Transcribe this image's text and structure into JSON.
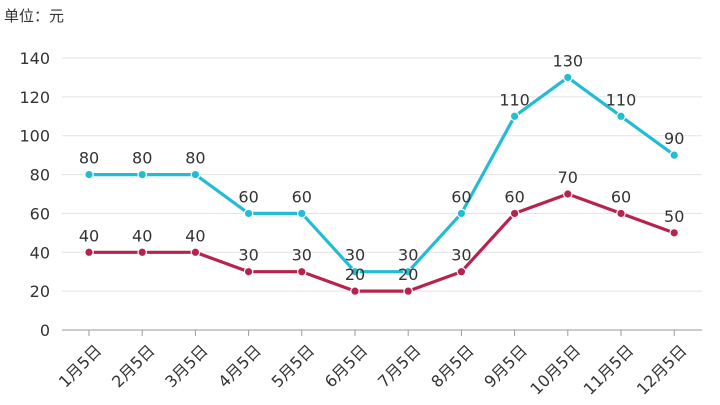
{
  "chart_data": {
    "type": "line",
    "unit_label": "单位：元",
    "categories": [
      "1月5日",
      "2月5日",
      "3月5日",
      "4月5日",
      "5月5日",
      "6月5日",
      "7月5日",
      "8月5日",
      "9月5日",
      "10月5日",
      "11月5日",
      "12月5日"
    ],
    "series": [
      {
        "name": "series-1",
        "color": "#22bcd4",
        "values": [
          80,
          80,
          80,
          60,
          60,
          30,
          30,
          60,
          110,
          130,
          110,
          90
        ]
      },
      {
        "name": "series-2",
        "color": "#b8234d",
        "values": [
          40,
          40,
          40,
          30,
          30,
          20,
          20,
          30,
          60,
          70,
          60,
          50
        ]
      }
    ],
    "ylim": [
      0,
      140
    ],
    "yticks": [
      0,
      20,
      40,
      60,
      80,
      100,
      120,
      140
    ],
    "grid": true,
    "legend": "none"
  }
}
